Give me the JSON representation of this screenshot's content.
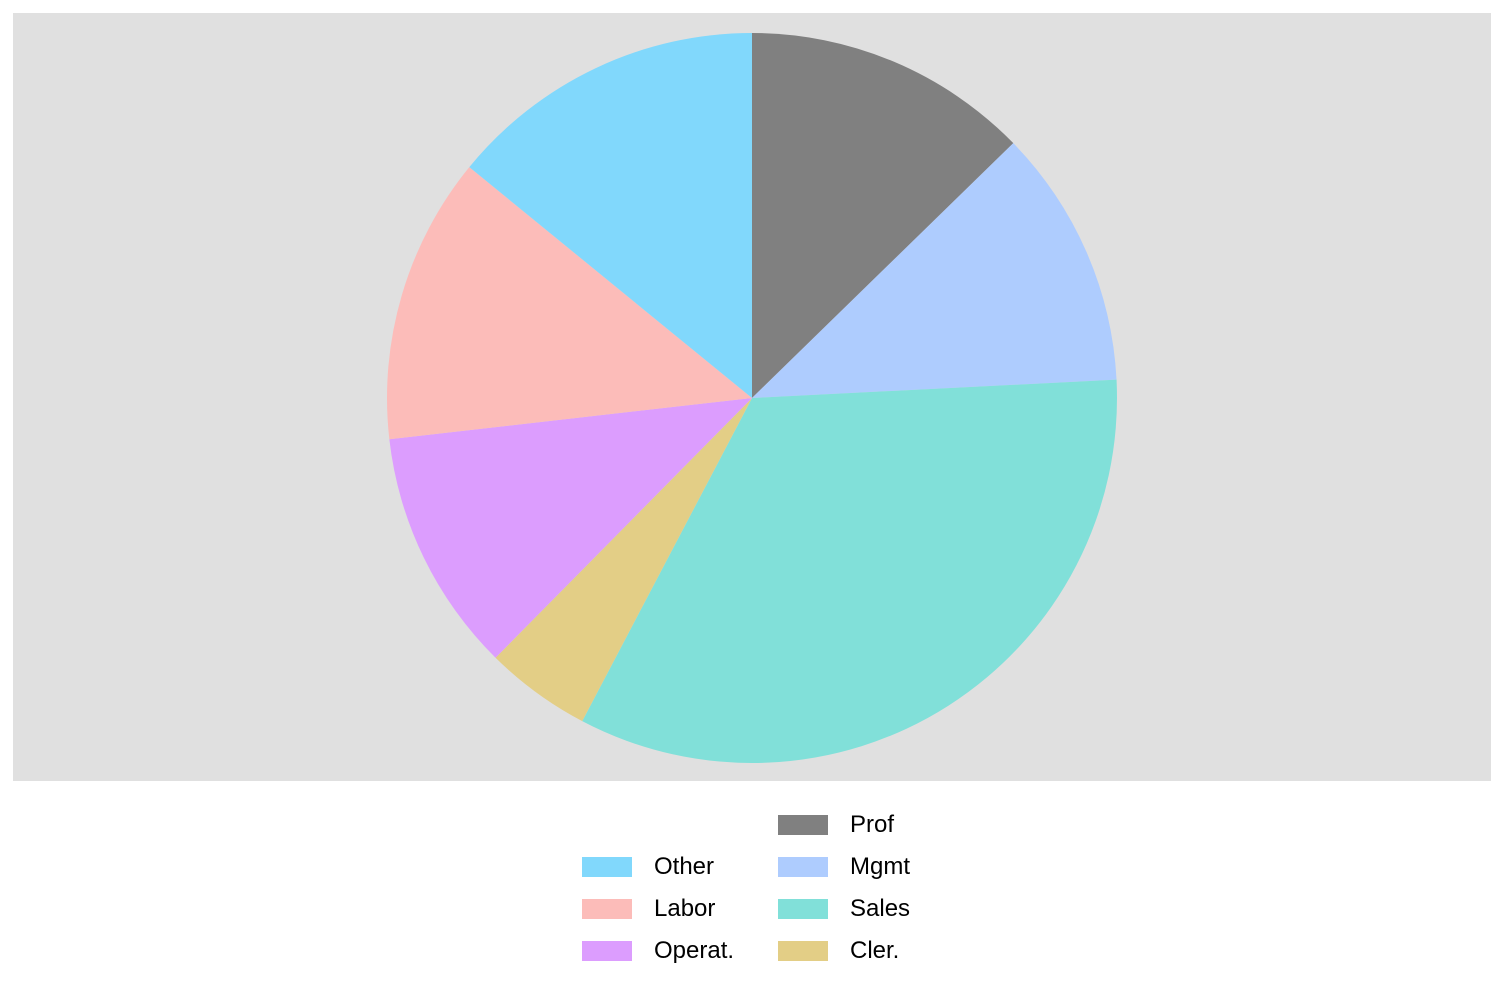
{
  "chart_data": {
    "type": "pie",
    "background": "#e0e0e0",
    "start_angle_deg": 0,
    "direction": "clockwise",
    "slices": [
      {
        "label": "Prof",
        "value": 12.7,
        "color": "#808080"
      },
      {
        "label": "Mgmt",
        "value": 11.5,
        "color": "#aeccfe"
      },
      {
        "label": "Sales",
        "value": 33.5,
        "color": "#81e0d9"
      },
      {
        "label": "Cler.",
        "value": 4.7,
        "color": "#e3ce86"
      },
      {
        "label": "Operat.",
        "value": 10.8,
        "color": "#dc9dfe"
      },
      {
        "label": "Labor",
        "value": 12.7,
        "color": "#fcbcb9"
      },
      {
        "label": "Other",
        "value": 14.1,
        "color": "#81d8fc"
      }
    ],
    "legend": {
      "placement": "bottom",
      "columns": [
        [
          "Other",
          "Labor",
          "Operat."
        ],
        [
          "Prof",
          "Mgmt",
          "Sales",
          "Cler."
        ]
      ]
    }
  }
}
